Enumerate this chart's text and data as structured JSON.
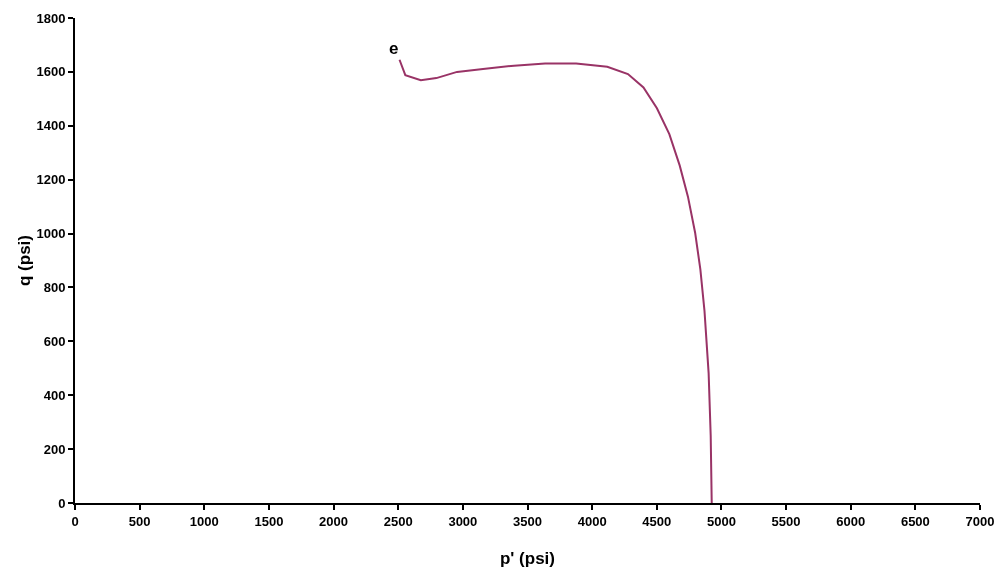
{
  "chart_data": {
    "type": "line",
    "xlabel": "p' (psi)",
    "ylabel": "q (psi)",
    "x": [
      4925,
      4917,
      4901,
      4869,
      4837,
      4797,
      4741,
      4677,
      4597,
      4501,
      4397,
      4277,
      4117,
      3876,
      3636,
      3396,
      3156,
      2955,
      2795,
      2675,
      2555,
      2510
    ],
    "series": [
      {
        "color": "#993366",
        "values": [
          0,
          250,
          482,
          713,
          867,
          1002,
          1137,
          1253,
          1369,
          1465,
          1542,
          1592,
          1619,
          1631,
          1631,
          1623,
          1611,
          1600,
          1577,
          1569,
          1588,
          1645
        ]
      }
    ],
    "annotations": [
      {
        "text": "e",
        "x": 2510,
        "y": 1645
      }
    ],
    "xlim": [
      0,
      7000
    ],
    "xticks": [
      0,
      500,
      1000,
      1500,
      2000,
      2500,
      3000,
      3500,
      4000,
      4500,
      5000,
      5500,
      6000,
      6500,
      7000
    ],
    "ylim": [
      0,
      1800
    ],
    "yticks": [
      0,
      200,
      400,
      600,
      800,
      1000,
      1200,
      1400,
      1600,
      1800
    ],
    "grid": false,
    "marker": "none",
    "line_style": "solid"
  }
}
